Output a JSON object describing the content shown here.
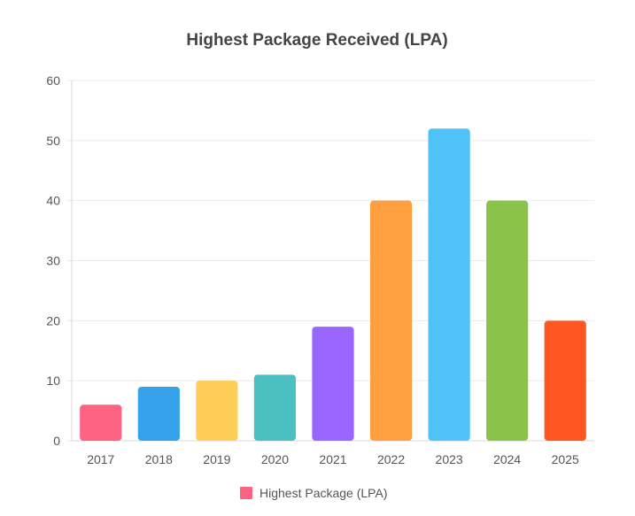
{
  "chart_data": {
    "type": "bar",
    "title": "Highest Package Received (LPA)",
    "xlabel": "",
    "ylabel": "",
    "categories": [
      "2017",
      "2018",
      "2019",
      "2020",
      "2021",
      "2022",
      "2023",
      "2024",
      "2025"
    ],
    "series": [
      {
        "name": "Highest Package (LPA)",
        "values": [
          6,
          9,
          10,
          11,
          19,
          40,
          52,
          40,
          20
        ]
      }
    ],
    "bar_colors": [
      "#ff6384",
      "#36a2eb",
      "#ffce56",
      "#4bc0c0",
      "#9966ff",
      "#ff9f40",
      "#4fc3f7",
      "#8bc34a",
      "#ff5722"
    ],
    "ylim": [
      0,
      60
    ],
    "yticks": [
      0,
      10,
      20,
      30,
      40,
      50,
      60
    ],
    "grid": true,
    "legend_position": "bottom",
    "legend_swatch_color": "#ff6384"
  }
}
